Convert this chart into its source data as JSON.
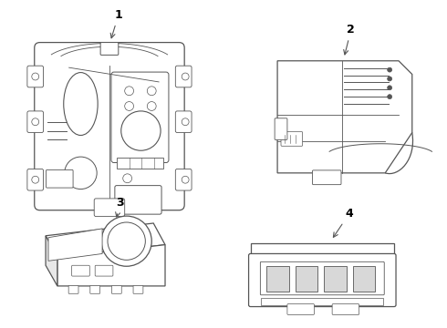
{
  "background_color": "#ffffff",
  "line_color": "#555555",
  "label_color": "#000000",
  "fig_width": 4.9,
  "fig_height": 3.6,
  "dpi": 100
}
